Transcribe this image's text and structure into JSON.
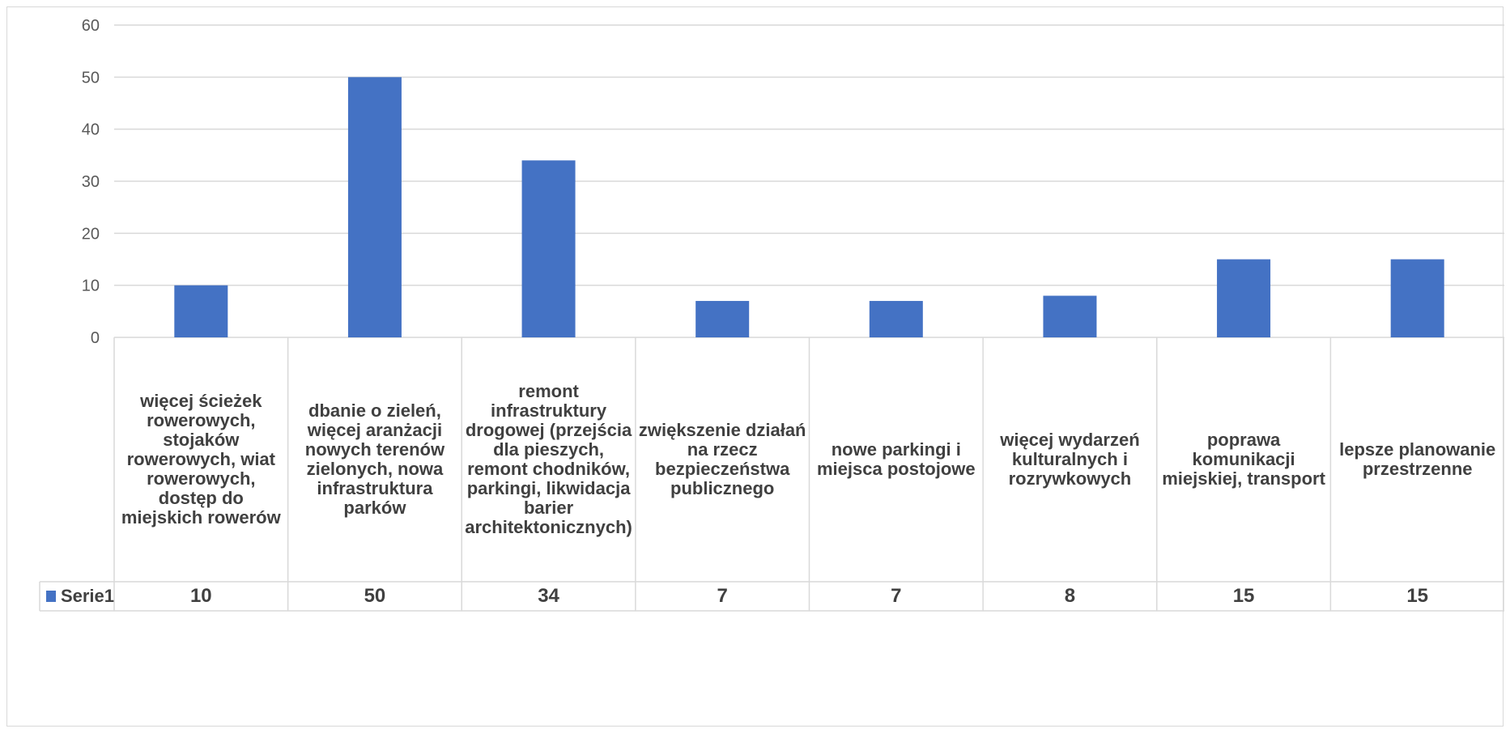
{
  "chart_data": {
    "type": "bar",
    "categories": [
      "więcej ścieżek rowerowych, stojaków rowerowych, wiat rowerowych, dostęp do miejskich rowerów",
      "dbanie o zieleń, więcej aranżacji nowych terenów zielonych, nowa infrastruktura parków",
      "remont infrastruktury drogowej (przejścia dla pieszych, remont chodników, parkingi, likwidacja barier architektonicznych)",
      "zwiększenie działań na rzecz bezpieczeństwa publicznego",
      "nowe parkingi i miejsca postojowe",
      "więcej wydarzeń kulturalnych i rozrywkowych",
      "poprawa komunikacji miejskiej, transport",
      "lepsze planowanie przestrzenne"
    ],
    "series": [
      {
        "name": "Serie1",
        "values": [
          10,
          50,
          34,
          7,
          7,
          8,
          15,
          15
        ],
        "color": "#4472c4"
      }
    ],
    "yticks": [
      "0",
      "10",
      "20",
      "30",
      "40",
      "50",
      "60"
    ],
    "ylim": [
      0,
      60
    ],
    "grid": true,
    "legend": "data-table-left"
  }
}
